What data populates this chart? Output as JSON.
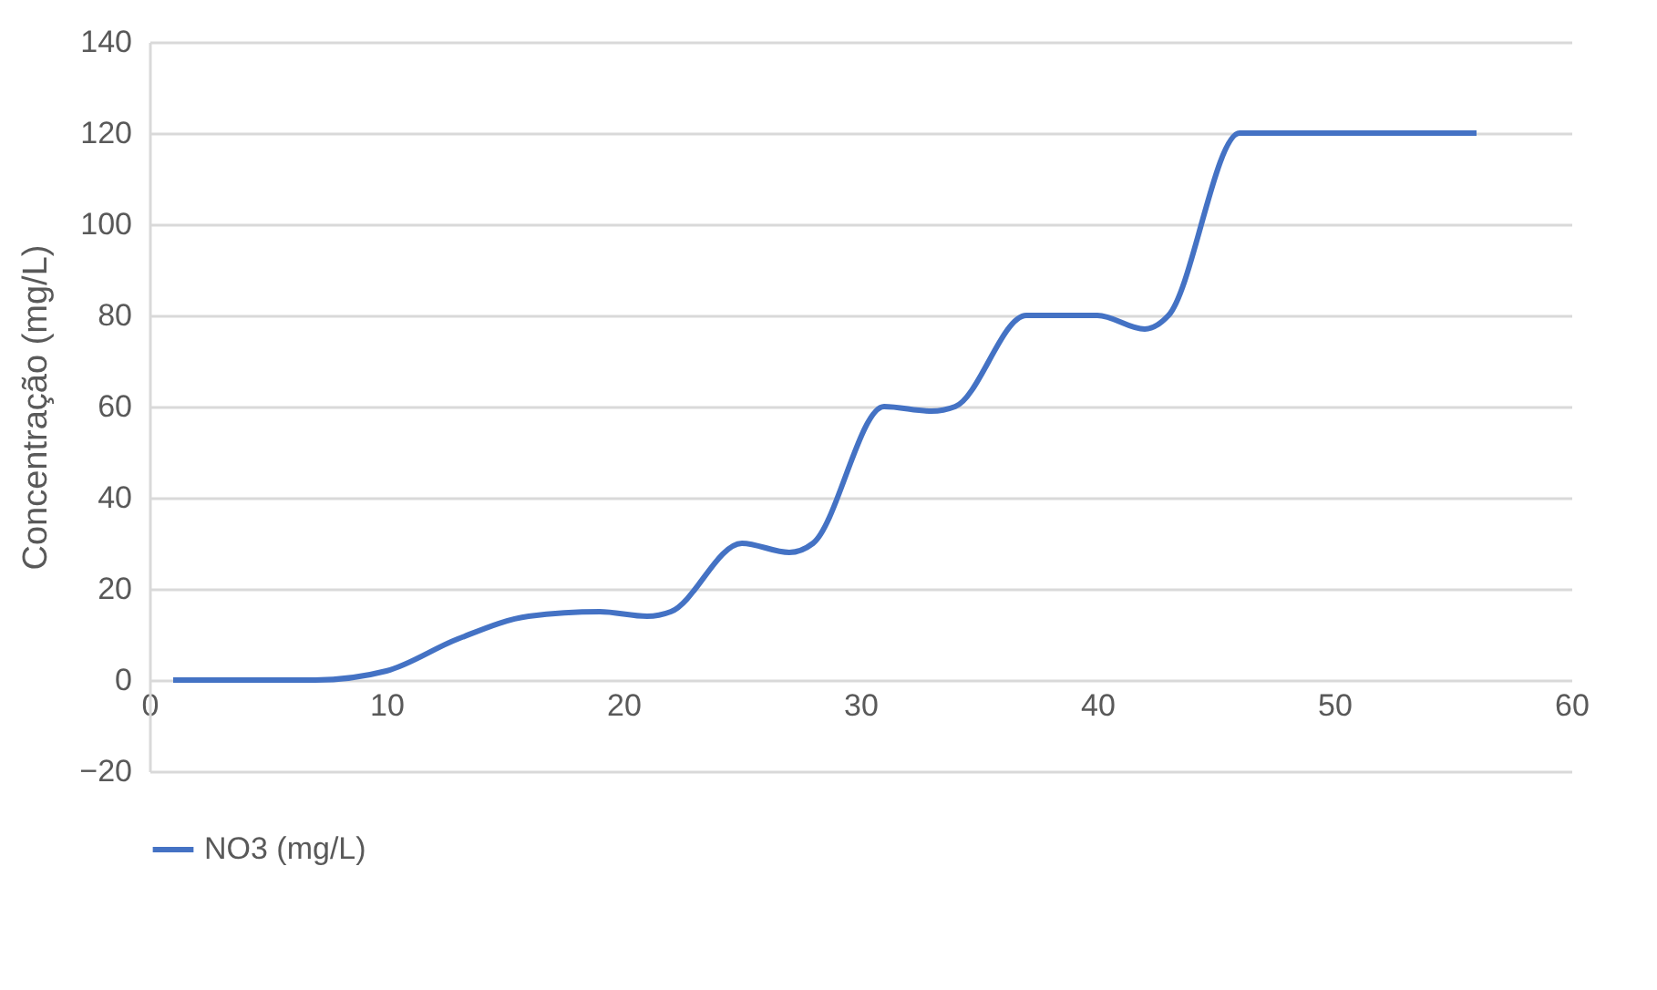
{
  "chart_data": {
    "type": "line",
    "ylabel": "Concentração (mg/L)",
    "x": [
      1,
      4,
      7,
      10,
      13,
      16,
      19,
      21,
      22,
      25,
      27,
      28,
      31,
      33,
      34,
      37,
      40,
      42,
      43,
      46,
      49,
      56
    ],
    "series": [
      {
        "name": "NO3 (mg/L)",
        "color": "#4472c4",
        "values": [
          0,
          0,
          0,
          2,
          9,
          14,
          15,
          14,
          15,
          30,
          28,
          30,
          60,
          59,
          60,
          80,
          80,
          77,
          80,
          120,
          120,
          120
        ]
      }
    ],
    "xlim": [
      0,
      60
    ],
    "xticks": [
      0,
      10,
      20,
      30,
      40,
      50,
      60
    ],
    "ylim": [
      -20,
      140
    ],
    "yticks": [
      -20,
      0,
      20,
      40,
      60,
      80,
      100,
      120,
      140
    ],
    "grid": "y",
    "legend": "bottom",
    "marker": "none",
    "line_style": "solid"
  }
}
